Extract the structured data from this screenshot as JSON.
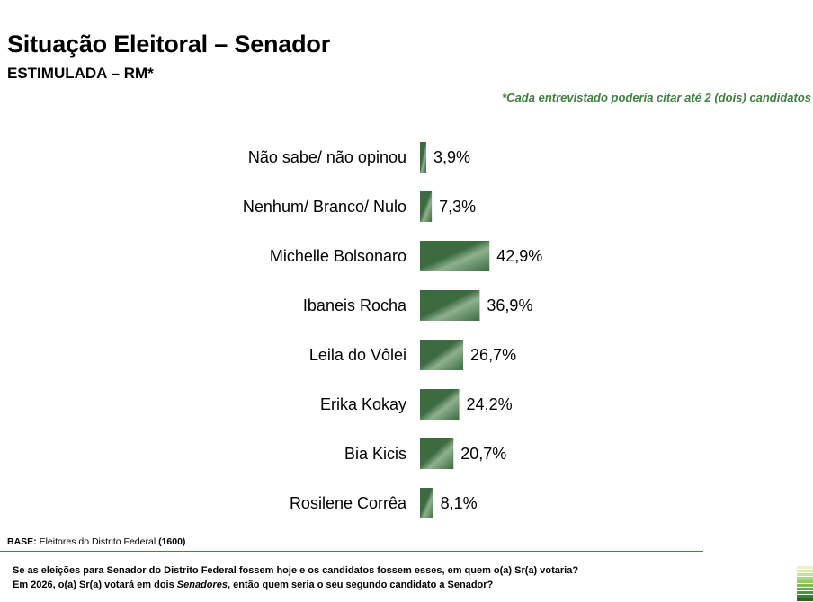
{
  "header": {
    "title": "Situação Eleitoral – Senador",
    "subtitle": "ESTIMULADA – RM*",
    "note": "*Cada entrevistado poderia citar até 2 (dois) candidatos"
  },
  "chart_data": {
    "type": "bar",
    "orientation": "horizontal",
    "categories": [
      "Não sabe/ não opinou",
      "Nenhum/ Branco/ Nulo",
      "Michelle Bolsonaro",
      "Ibaneis Rocha",
      "Leila do Vôlei",
      "Erika Kokay",
      "Bia Kicis",
      "Rosilene Corrêa"
    ],
    "values": [
      3.9,
      7.3,
      42.9,
      36.9,
      26.7,
      24.2,
      20.7,
      8.1
    ],
    "data_labels": [
      "3,9%",
      "7,3%",
      "42,9%",
      "36,9%",
      "26,7%",
      "24,2%",
      "20,7%",
      "8,1%"
    ],
    "unit": "%",
    "bar_color": "#3d6b41",
    "bar_highlight_color": "#8fb08f"
  },
  "footer": {
    "base_label": "BASE:",
    "base_text": "Eleitores do Distrito Federal",
    "base_count": "(1600)",
    "question_line1": "Se as eleições para Senador do Distrito Federal fossem hoje e os candidatos fossem esses, em quem o(a) Sr(a) votaria?",
    "question_line2_a": "Em 2026, o(a) Sr(a) votará em dois",
    "question_line2_italic": "Senadores",
    "question_line2_b": ", então quem seria o seu segundo candidato a Senador?"
  },
  "decor": {
    "stripe_colors": [
      "#e8f3c8",
      "#d6ebb0",
      "#c3e296",
      "#aed67c",
      "#97c965",
      "#7fba52",
      "#67a844",
      "#4f9439",
      "#3b7d31",
      "#2a662a"
    ]
  }
}
